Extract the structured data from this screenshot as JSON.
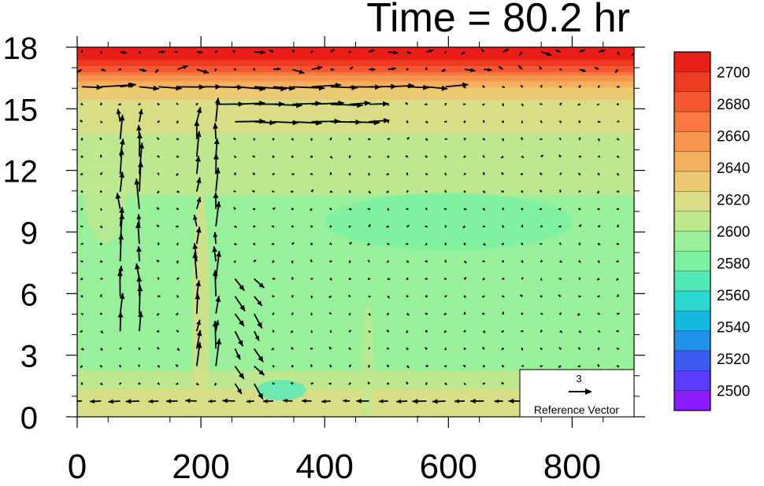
{
  "chart_data": {
    "type": "heatmap",
    "title": "Time = 80.2 hr",
    "xlabel": "",
    "ylabel": "",
    "xlim": [
      0,
      900
    ],
    "ylim": [
      0,
      18
    ],
    "x_ticks": [
      0,
      200,
      400,
      600,
      800
    ],
    "y_ticks": [
      0,
      3,
      6,
      9,
      12,
      15,
      18
    ],
    "colorbar": {
      "levels": [
        2500,
        2520,
        2540,
        2560,
        2580,
        2600,
        2620,
        2640,
        2660,
        2680,
        2700
      ],
      "colors": [
        "#8c1aff",
        "#5b3bff",
        "#3a5cf0",
        "#2090e8",
        "#15b8e0",
        "#2ad8d0",
        "#55e8b8",
        "#7af2a0",
        "#98f09a",
        "#bde890",
        "#d8de86",
        "#ecca74",
        "#f4b060",
        "#f79550",
        "#f77840",
        "#f45830",
        "#ee3a22",
        "#e81e18"
      ]
    },
    "field_rows": [
      {
        "height": 0.5,
        "value": 2622
      },
      {
        "height": 1.5,
        "value": 2608
      },
      {
        "height": 3,
        "value": 2593
      },
      {
        "height": 6,
        "value": 2590
      },
      {
        "height": 9,
        "value": 2592
      },
      {
        "height": 12,
        "value": 2605
      },
      {
        "height": 15,
        "value": 2615
      },
      {
        "height": 16,
        "value": 2630
      },
      {
        "height": 16.8,
        "value": 2665
      },
      {
        "height": 17.4,
        "value": 2690
      },
      {
        "height": 18,
        "value": 2705
      }
    ],
    "reference_vector": {
      "magnitude": "3",
      "label": "Reference Vector"
    }
  }
}
